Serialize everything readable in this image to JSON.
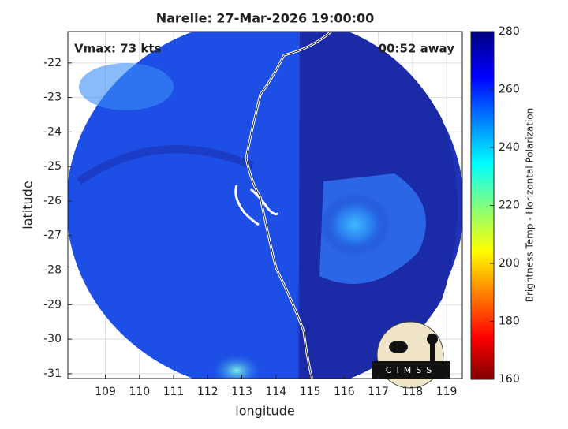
{
  "chart_data": {
    "type": "map",
    "title": "Narelle: 27-Mar-2026 19:00:00",
    "annotations": [
      "Vmax: 73 kts",
      "00:52 away"
    ],
    "x_label": "longitude",
    "y_label": "latitude",
    "xlim": [
      107.9,
      119.46
    ],
    "xticks": [
      109,
      110,
      111,
      112,
      113,
      114,
      115,
      116,
      117,
      118,
      119
    ],
    "ylim": [
      -31.14,
      -21.09
    ],
    "yticks": [
      -22,
      -23,
      -24,
      -25,
      -26,
      -27,
      -28,
      -29,
      -30,
      -31
    ],
    "grid": true,
    "colorbar": {
      "label": "Brightness Temp - Horizontal Polarization",
      "lim": [
        160,
        280
      ],
      "ticks": [
        160,
        180,
        200,
        220,
        240,
        260,
        280
      ]
    },
    "logo": "CIMSS"
  }
}
